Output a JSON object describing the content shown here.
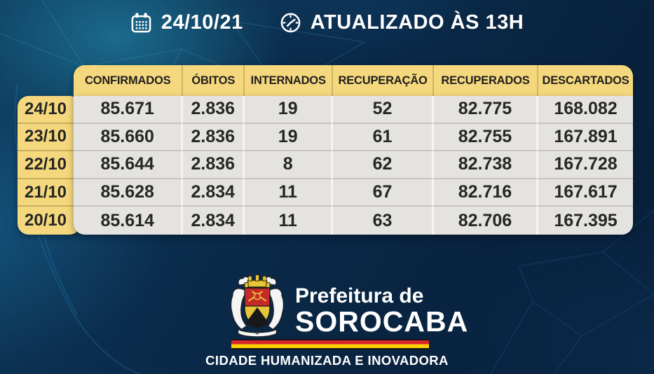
{
  "topbar": {
    "date": "24/10/21",
    "updated_text": "ATUALIZADO ÀS 13H"
  },
  "chart_data": {
    "type": "table",
    "title": "24/10/21 — ATUALIZADO ÀS 13H",
    "columns": [
      "CONFIRMADOS",
      "ÓBITOS",
      "INTERNADOS",
      "RECUPERAÇÃO",
      "RECUPERADOS",
      "DESCARTADOS"
    ],
    "row_labels": [
      "24/10",
      "23/10",
      "22/10",
      "21/10",
      "20/10"
    ],
    "rows": [
      [
        "85.671",
        "2.836",
        "19",
        "52",
        "82.775",
        "168.082"
      ],
      [
        "85.660",
        "2.836",
        "19",
        "61",
        "82.755",
        "167.891"
      ],
      [
        "85.644",
        "2.836",
        "8",
        "62",
        "82.738",
        "167.728"
      ],
      [
        "85.628",
        "2.834",
        "11",
        "67",
        "82.716",
        "167.617"
      ],
      [
        "85.614",
        "2.834",
        "11",
        "63",
        "82.706",
        "167.395"
      ]
    ],
    "legend_position": "none",
    "grid": "table lines"
  },
  "footer": {
    "org_name_line1": "Prefeitura de",
    "org_name_line2": "SOROCABA",
    "tagline": "CIDADE HUMANIZADA E INOVADORA"
  },
  "icons": {
    "calendar": "calendar-icon",
    "clock": "clock-icon",
    "crest": "sorocaba-coat-of-arms"
  },
  "colors": {
    "accent_yellow": "#F5D87E",
    "panel_gray": "#E4E3E1",
    "background_navy": "#0A2948",
    "stripe_red": "#D8262C",
    "stripe_yellow": "#FFD200",
    "text_dark": "#262624",
    "text_white": "#FFFFFF"
  }
}
